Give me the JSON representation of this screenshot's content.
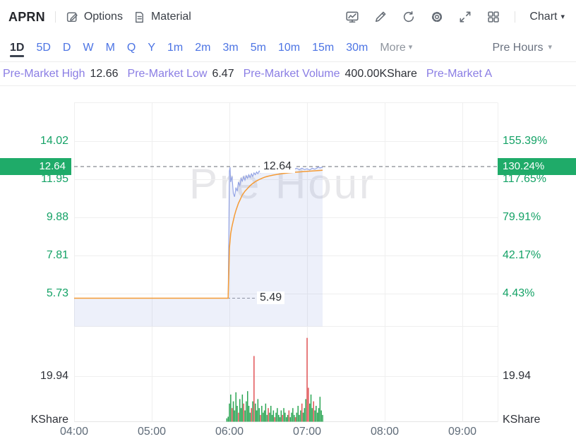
{
  "topbar": {
    "symbol": "APRN",
    "menu_items": [
      {
        "label": "Options",
        "icon": "chart-edit-icon"
      },
      {
        "label": "Material",
        "icon": "document-icon"
      }
    ],
    "tool_icons": [
      "stock-board-icon",
      "draw-icon",
      "refresh-icon",
      "settings-gear-icon",
      "fullscreen-icon",
      "layout-grid-icon"
    ],
    "chart_menu_label": "Chart"
  },
  "tabs": {
    "items": [
      "1D",
      "5D",
      "D",
      "W",
      "M",
      "Q",
      "Y",
      "1m",
      "2m",
      "3m",
      "5m",
      "10m",
      "15m",
      "30m"
    ],
    "active": "1D",
    "more_label": "More",
    "session_selector": "Pre Hours"
  },
  "stats": {
    "items": [
      {
        "label": "Pre-Market High",
        "value": "12.66"
      },
      {
        "label": "Pre-Market Low",
        "value": "6.47"
      },
      {
        "label": "Pre-Market Volume",
        "value": "400.00KShare"
      },
      {
        "label": "Pre-Market A",
        "value": ""
      }
    ]
  },
  "chart_data": {
    "type": "line",
    "watermark": "Pre Hour",
    "session": "pre-market",
    "x_axis": {
      "labels": [
        "04:00",
        "05:00",
        "06:00",
        "07:00",
        "08:00",
        "09:00"
      ]
    },
    "price_axis": {
      "ticks": [
        "14.02",
        "11.95",
        "9.88",
        "7.81",
        "5.73"
      ],
      "percent_ticks": [
        "155.39%",
        "117.65%",
        "79.91%",
        "42.17%",
        "4.43%"
      ],
      "current_price": 12.64,
      "current_price_label": "12.64",
      "current_percent_label": "130.24%",
      "prev_close": 5.49,
      "prev_close_label": "5.49"
    },
    "volume_axis": {
      "tick_label": "19.94",
      "tick_value": 19.94,
      "unit_label": "KShare"
    },
    "colors": {
      "up": "#2aa553",
      "down": "#e15456",
      "badge_bg": "#1fab69",
      "axis_text": "#14a266"
    },
    "series": [
      {
        "name": "price",
        "color": "#8fa0e4",
        "points": [
          [
            0,
            5.49
          ],
          [
            60,
            5.49
          ],
          [
            119,
            5.49
          ],
          [
            120,
            12.4
          ],
          [
            120.5,
            12.6
          ],
          [
            121,
            11.8
          ],
          [
            122,
            12.1
          ],
          [
            123,
            11.2
          ],
          [
            124,
            11.0
          ],
          [
            125,
            11.5
          ],
          [
            126,
            11.3
          ],
          [
            127,
            11.8
          ],
          [
            128,
            11.6
          ],
          [
            129,
            12.0
          ],
          [
            130,
            11.85
          ],
          [
            131,
            12.1
          ],
          [
            132,
            11.9
          ],
          [
            133,
            12.15
          ],
          [
            134,
            12.0
          ],
          [
            135,
            12.2
          ],
          [
            136,
            12.05
          ],
          [
            137,
            12.25
          ],
          [
            138,
            12.1
          ],
          [
            139,
            12.3
          ],
          [
            140,
            12.2
          ],
          [
            141,
            12.35
          ],
          [
            142,
            12.25
          ],
          [
            143,
            12.4
          ],
          [
            144,
            12.3
          ],
          [
            145,
            12.42
          ],
          [
            146,
            12.32
          ],
          [
            147,
            12.45
          ],
          [
            148,
            12.35
          ],
          [
            150,
            12.45
          ],
          [
            152,
            12.36
          ],
          [
            154,
            12.48
          ],
          [
            156,
            12.4
          ],
          [
            158,
            12.5
          ],
          [
            160,
            12.42
          ],
          [
            162,
            12.5
          ],
          [
            164,
            12.45
          ],
          [
            166,
            12.52
          ],
          [
            168,
            12.46
          ],
          [
            170,
            12.5
          ],
          [
            172,
            12.55
          ],
          [
            174,
            12.48
          ],
          [
            176,
            12.55
          ],
          [
            178,
            12.48
          ],
          [
            180,
            12.52
          ],
          [
            182,
            12.46
          ],
          [
            184,
            12.55
          ],
          [
            186,
            12.5
          ],
          [
            188,
            12.58
          ],
          [
            189,
            12.62
          ],
          [
            190,
            12.56
          ],
          [
            191,
            12.6
          ],
          [
            192,
            12.58
          ]
        ]
      },
      {
        "name": "avg-price",
        "color": "#f59b35",
        "points": [
          [
            0,
            5.49
          ],
          [
            60,
            5.49
          ],
          [
            119,
            5.49
          ],
          [
            120,
            8.2
          ],
          [
            121,
            9.0
          ],
          [
            122,
            9.4
          ],
          [
            123,
            9.7
          ],
          [
            124,
            10.0
          ],
          [
            125,
            10.25
          ],
          [
            126,
            10.45
          ],
          [
            127,
            10.65
          ],
          [
            128,
            10.8
          ],
          [
            129,
            10.95
          ],
          [
            130,
            11.1
          ],
          [
            132,
            11.3
          ],
          [
            134,
            11.45
          ],
          [
            136,
            11.6
          ],
          [
            138,
            11.72
          ],
          [
            140,
            11.82
          ],
          [
            142,
            11.9
          ],
          [
            144,
            11.97
          ],
          [
            146,
            12.03
          ],
          [
            148,
            12.08
          ],
          [
            150,
            12.12
          ],
          [
            154,
            12.18
          ],
          [
            158,
            12.23
          ],
          [
            162,
            12.27
          ],
          [
            166,
            12.3
          ],
          [
            170,
            12.33
          ],
          [
            174,
            12.35
          ],
          [
            178,
            12.37
          ],
          [
            182,
            12.39
          ],
          [
            186,
            12.41
          ],
          [
            190,
            12.43
          ],
          [
            192,
            12.44
          ]
        ]
      }
    ],
    "volume_bars": [
      [
        118,
        1.5,
        "u"
      ],
      [
        119,
        2.2,
        "u"
      ],
      [
        120,
        8,
        "u"
      ],
      [
        121,
        12,
        "u"
      ],
      [
        122,
        6,
        "d"
      ],
      [
        123,
        9,
        "u"
      ],
      [
        124,
        5,
        "u"
      ],
      [
        125,
        13,
        "u"
      ],
      [
        126,
        7,
        "u"
      ],
      [
        127,
        4,
        "d"
      ],
      [
        128,
        10,
        "u"
      ],
      [
        129,
        6,
        "u"
      ],
      [
        130,
        12,
        "u"
      ],
      [
        131,
        8,
        "d"
      ],
      [
        132,
        5,
        "u"
      ],
      [
        133,
        9,
        "u"
      ],
      [
        134,
        13.5,
        "u"
      ],
      [
        135,
        7,
        "u"
      ],
      [
        136,
        4,
        "u"
      ],
      [
        137,
        6,
        "d"
      ],
      [
        138,
        9,
        "u"
      ],
      [
        139,
        29,
        "d"
      ],
      [
        140,
        8,
        "u"
      ],
      [
        141,
        5,
        "u"
      ],
      [
        142,
        10,
        "u"
      ],
      [
        143,
        6,
        "u"
      ],
      [
        144,
        3,
        "d"
      ],
      [
        145,
        7,
        "u"
      ],
      [
        146,
        4,
        "u"
      ],
      [
        147,
        5,
        "u"
      ],
      [
        148,
        8,
        "u"
      ],
      [
        149,
        3,
        "u"
      ],
      [
        150,
        6,
        "d"
      ],
      [
        151,
        4,
        "u"
      ],
      [
        152,
        7,
        "u"
      ],
      [
        153,
        3,
        "u"
      ],
      [
        154,
        5,
        "u"
      ],
      [
        155,
        2,
        "d"
      ],
      [
        156,
        4,
        "u"
      ],
      [
        157,
        6,
        "u"
      ],
      [
        158,
        3,
        "u"
      ],
      [
        159,
        2,
        "u"
      ],
      [
        160,
        5,
        "u"
      ],
      [
        161,
        3,
        "d"
      ],
      [
        162,
        6,
        "u"
      ],
      [
        163,
        4,
        "u"
      ],
      [
        164,
        2,
        "u"
      ],
      [
        165,
        3,
        "u"
      ],
      [
        166,
        5,
        "d"
      ],
      [
        167,
        2,
        "u"
      ],
      [
        168,
        4,
        "u"
      ],
      [
        169,
        6,
        "u"
      ],
      [
        170,
        3,
        "u"
      ],
      [
        171,
        2,
        "d"
      ],
      [
        172,
        4,
        "u"
      ],
      [
        173,
        7,
        "u"
      ],
      [
        174,
        3,
        "u"
      ],
      [
        175,
        5,
        "u"
      ],
      [
        176,
        8,
        "d"
      ],
      [
        177,
        4,
        "u"
      ],
      [
        178,
        6,
        "u"
      ],
      [
        179,
        10,
        "u"
      ],
      [
        180,
        37,
        "d"
      ],
      [
        181,
        15,
        "d"
      ],
      [
        182,
        8,
        "u"
      ],
      [
        183,
        12,
        "u"
      ],
      [
        184,
        6,
        "u"
      ],
      [
        185,
        9,
        "d"
      ],
      [
        186,
        5,
        "u"
      ],
      [
        187,
        7,
        "u"
      ],
      [
        188,
        4,
        "u"
      ],
      [
        189,
        6,
        "u"
      ],
      [
        190,
        11,
        "u"
      ],
      [
        191,
        5,
        "u"
      ],
      [
        192,
        3,
        "u"
      ]
    ]
  }
}
